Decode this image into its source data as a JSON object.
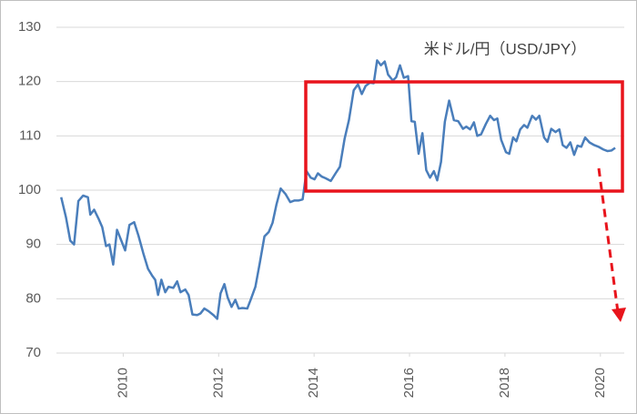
{
  "chart_data": {
    "type": "line",
    "title": "米ドル/円（USD/JPY）",
    "color": "#4a7ebb",
    "x": [
      2008.7,
      2008.8,
      2008.89,
      2008.97,
      2009.06,
      2009.16,
      2009.26,
      2009.31,
      2009.39,
      2009.48,
      2009.56,
      2009.64,
      2009.71,
      2009.79,
      2009.87,
      2009.96,
      2010.04,
      2010.13,
      2010.23,
      2010.32,
      2010.42,
      2010.52,
      2010.61,
      2010.67,
      2010.73,
      2010.8,
      2010.88,
      2010.95,
      2011.05,
      2011.13,
      2011.2,
      2011.3,
      2011.37,
      2011.45,
      2011.55,
      2011.62,
      2011.7,
      2011.79,
      2011.89,
      2011.97,
      2012.04,
      2012.12,
      2012.19,
      2012.27,
      2012.35,
      2012.42,
      2012.5,
      2012.6,
      2012.67,
      2012.77,
      2012.86,
      2012.96,
      2013.05,
      2013.13,
      2013.21,
      2013.3,
      2013.4,
      2013.5,
      2013.59,
      2013.68,
      2013.76,
      2013.84,
      2013.93,
      2014.01,
      2014.08,
      2014.16,
      2014.24,
      2014.35,
      2014.45,
      2014.54,
      2014.64,
      2014.73,
      2014.83,
      2014.92,
      2015.0,
      2015.08,
      2015.17,
      2015.25,
      2015.32,
      2015.4,
      2015.48,
      2015.55,
      2015.65,
      2015.72,
      2015.8,
      2015.88,
      2015.97,
      2016.04,
      2016.11,
      2016.19,
      2016.27,
      2016.35,
      2016.43,
      2016.51,
      2016.58,
      2016.66,
      2016.74,
      2016.83,
      2016.93,
      2017.02,
      2017.12,
      2017.19,
      2017.27,
      2017.35,
      2017.42,
      2017.5,
      2017.6,
      2017.69,
      2017.77,
      2017.84,
      2017.92,
      2018.02,
      2018.09,
      2018.17,
      2018.24,
      2018.32,
      2018.4,
      2018.47,
      2018.57,
      2018.65,
      2018.72,
      2018.82,
      2018.89,
      2018.97,
      2019.06,
      2019.14,
      2019.21,
      2019.29,
      2019.37,
      2019.45,
      2019.52,
      2019.6,
      2019.68,
      2019.77,
      2019.87,
      2019.96,
      2020.06,
      2020.15,
      2020.23,
      2020.31
    ],
    "values": [
      98.7,
      95,
      90.7,
      90,
      98,
      99,
      98.7,
      95.5,
      96.4,
      94.8,
      93.2,
      89.7,
      90,
      86.3,
      92.7,
      90.7,
      88.9,
      93.6,
      94.1,
      91.6,
      88.4,
      85.5,
      84.2,
      83.5,
      80.7,
      83.5,
      81.2,
      82.2,
      82,
      83.2,
      81.2,
      81.7,
      80.7,
      77.1,
      77,
      77.3,
      78.2,
      77.7,
      77,
      76.3,
      81,
      82.7,
      80.2,
      78.5,
      79.8,
      78.2,
      78.3,
      78.2,
      79.8,
      82.2,
      86.5,
      91.5,
      92.3,
      94,
      97.3,
      100.3,
      99.3,
      97.8,
      98.1,
      98.1,
      98.3,
      103.5,
      102.3,
      102,
      103.1,
      102.5,
      102.2,
      101.7,
      103.1,
      104.3,
      109.5,
      112.9,
      118.4,
      119.5,
      117.7,
      119.2,
      119.8,
      119.7,
      123.9,
      123,
      123.7,
      121.3,
      120.2,
      120.8,
      123,
      120.7,
      121,
      112.7,
      112.6,
      106.7,
      110.5,
      103.7,
      102.3,
      103.5,
      101.8,
      105.2,
      112.6,
      116.5,
      112.9,
      112.7,
      111.3,
      111.7,
      111.2,
      112.5,
      110,
      110.3,
      112.2,
      113.7,
      112.9,
      113.2,
      109.3,
      107,
      106.7,
      109.7,
      109,
      111.2,
      112,
      111.5,
      113.7,
      113,
      113.7,
      109.7,
      108.9,
      111.3,
      110.7,
      111.2,
      108.3,
      107.8,
      108.8,
      106.5,
      108.2,
      108,
      109.7,
      108.8,
      108.3,
      108,
      107.5,
      107.2,
      107.3,
      107.8
    ],
    "xlim": [
      2008.6,
      2020.5
    ],
    "xticks": [
      2010,
      2012,
      2014,
      2016,
      2018,
      2020
    ],
    "ylim": [
      70,
      130
    ],
    "yticks": [
      70,
      80,
      90,
      100,
      110,
      120,
      130
    ],
    "grid": true
  }
}
